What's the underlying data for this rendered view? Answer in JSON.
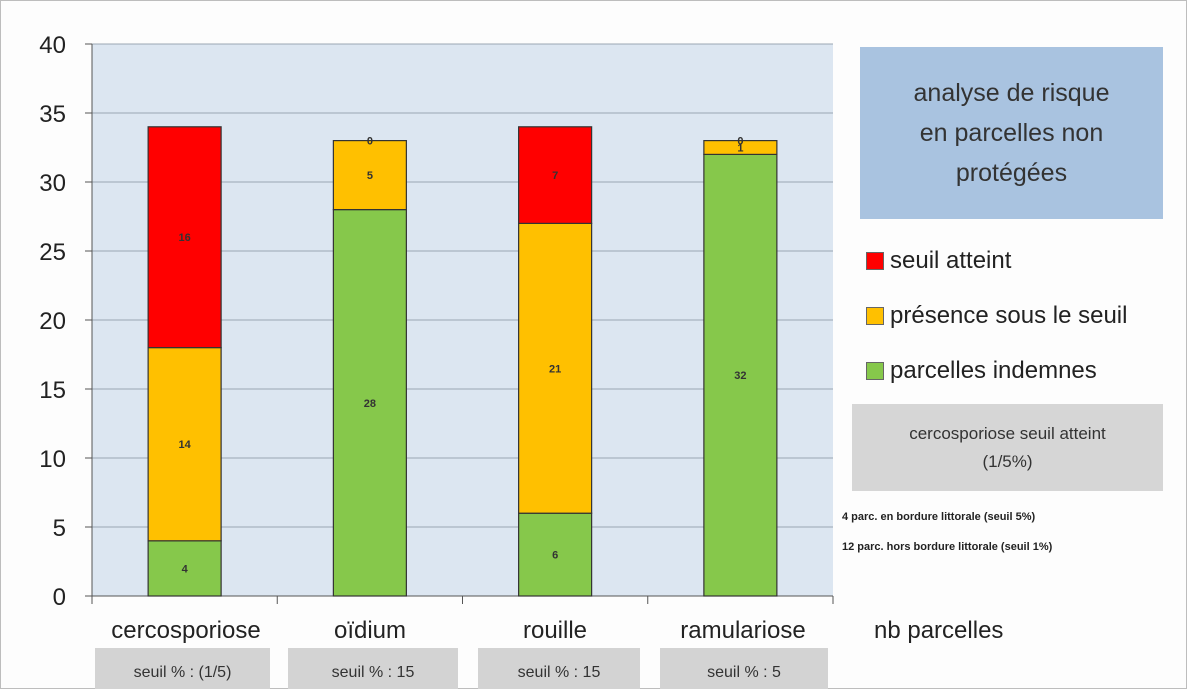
{
  "chart_data": {
    "type": "bar",
    "stacked": true,
    "categories": [
      "cercosporiose",
      "oïdium",
      "rouille",
      "ramulariose"
    ],
    "series": [
      {
        "name": "parcelles indemnes",
        "color": "#86c84b",
        "values": [
          4,
          28,
          6,
          32
        ],
        "labels": [
          "4",
          "28",
          "6",
          "32"
        ]
      },
      {
        "name": "présence sous le seuil",
        "color": "#ffc000",
        "values": [
          14,
          5,
          21,
          1
        ],
        "labels": [
          "14",
          "5",
          "21",
          "1"
        ]
      },
      {
        "name": "seuil atteint",
        "color": "#ff0000",
        "values": [
          16,
          0,
          7,
          0
        ],
        "labels": [
          "16",
          "0",
          "7",
          "0"
        ]
      }
    ],
    "ylim": [
      0,
      40
    ],
    "yticks": [
      "0",
      "5",
      "10",
      "15",
      "20",
      "25",
      "30",
      "35",
      "40"
    ],
    "xlabel": "nb parcelles",
    "grid": true,
    "legend_position": "right",
    "plot_background": "#dce6f1"
  },
  "title": "analyse de risque\nen parcelles non\nprotégées",
  "legend": [
    {
      "label": "seuil atteint",
      "color": "#ff0000"
    },
    {
      "label": "présence sous le seuil",
      "color": "#ffc000"
    },
    {
      "label": "parcelles indemnes",
      "color": "#86c84b"
    }
  ],
  "note": "cercosporiose seuil atteint\n(1/5%)",
  "small_notes": [
    "4 parc. en bordure littorale (seuil 5%)",
    "12 parc. hors bordure littorale (seuil 1%)"
  ],
  "seuils": [
    "seuil % : (1/5)",
    "seuil % : 15",
    "seuil % : 15",
    "seuil % : 5"
  ]
}
